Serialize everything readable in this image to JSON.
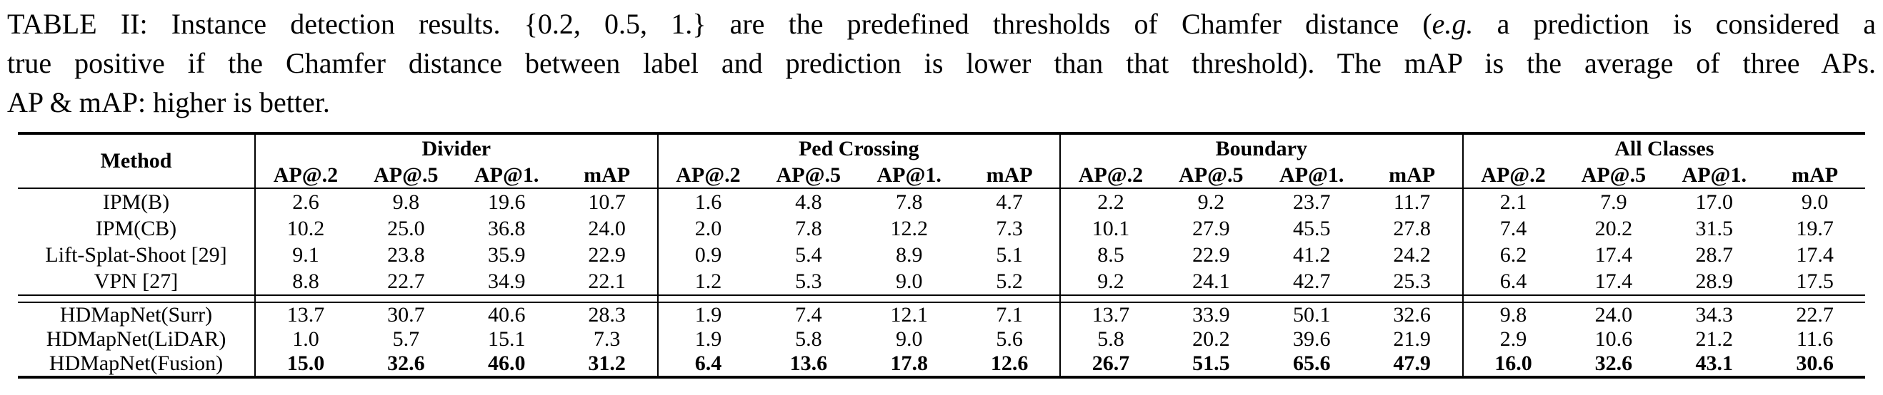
{
  "caption": {
    "line1_pre": "TABLE II: Instance detection results. {0.2, 0.5, 1.} are the predefined thresholds of Chamfer distance (",
    "line1_italic": "e.g.",
    "line1_post": " a prediction is considered a",
    "line2": "true positive if the Chamfer distance between label and prediction is lower than that threshold). The mAP is the average of three APs.",
    "line3": "AP & mAP: higher is better."
  },
  "table": {
    "method_header": "Method",
    "groups": [
      {
        "label": "Divider",
        "subheaders": [
          "AP@.2",
          "AP@.5",
          "AP@1.",
          "mAP"
        ]
      },
      {
        "label": "Ped Crossing",
        "subheaders": [
          "AP@.2",
          "AP@.5",
          "AP@1.",
          "mAP"
        ]
      },
      {
        "label": "Boundary",
        "subheaders": [
          "AP@.2",
          "AP@.5",
          "AP@1.",
          "mAP"
        ]
      },
      {
        "label": "All Classes",
        "subheaders": [
          "AP@.2",
          "AP@.5",
          "AP@1.",
          "mAP"
        ]
      }
    ],
    "rows_top": [
      {
        "method": "IPM(B)",
        "values": [
          "2.6",
          "9.8",
          "19.6",
          "10.7",
          "1.6",
          "4.8",
          "7.8",
          "4.7",
          "2.2",
          "9.2",
          "23.7",
          "11.7",
          "2.1",
          "7.9",
          "17.0",
          "9.0"
        ]
      },
      {
        "method": "IPM(CB)",
        "values": [
          "10.2",
          "25.0",
          "36.8",
          "24.0",
          "2.0",
          "7.8",
          "12.2",
          "7.3",
          "10.1",
          "27.9",
          "45.5",
          "27.8",
          "7.4",
          "20.2",
          "31.5",
          "19.7"
        ]
      },
      {
        "method": "Lift-Splat-Shoot [29]",
        "values": [
          "9.1",
          "23.8",
          "35.9",
          "22.9",
          "0.9",
          "5.4",
          "8.9",
          "5.1",
          "8.5",
          "22.9",
          "41.2",
          "24.2",
          "6.2",
          "17.4",
          "28.7",
          "17.4"
        ]
      },
      {
        "method": "VPN [27]",
        "values": [
          "8.8",
          "22.7",
          "34.9",
          "22.1",
          "1.2",
          "5.3",
          "9.0",
          "5.2",
          "9.2",
          "24.1",
          "42.7",
          "25.3",
          "6.4",
          "17.4",
          "28.9",
          "17.5"
        ]
      }
    ],
    "rows_bottom": [
      {
        "method": "HDMapNet(Surr)",
        "bold_values": false,
        "values": [
          "13.7",
          "30.7",
          "40.6",
          "28.3",
          "1.9",
          "7.4",
          "12.1",
          "7.1",
          "13.7",
          "33.9",
          "50.1",
          "32.6",
          "9.8",
          "24.0",
          "34.3",
          "22.7"
        ]
      },
      {
        "method": "HDMapNet(LiDAR)",
        "bold_values": false,
        "values": [
          "1.0",
          "5.7",
          "15.1",
          "7.3",
          "1.9",
          "5.8",
          "9.0",
          "5.6",
          "5.8",
          "20.2",
          "39.6",
          "21.9",
          "2.9",
          "10.6",
          "21.2",
          "11.6"
        ]
      },
      {
        "method": "HDMapNet(Fusion)",
        "bold_values": true,
        "values": [
          "15.0",
          "32.6",
          "46.0",
          "31.2",
          "6.4",
          "13.6",
          "17.8",
          "12.6",
          "26.7",
          "51.5",
          "65.6",
          "47.9",
          "16.0",
          "32.6",
          "43.1",
          "30.6"
        ]
      }
    ],
    "colors": {
      "text": "#000000",
      "background": "#ffffff",
      "rule": "#000000"
    }
  }
}
